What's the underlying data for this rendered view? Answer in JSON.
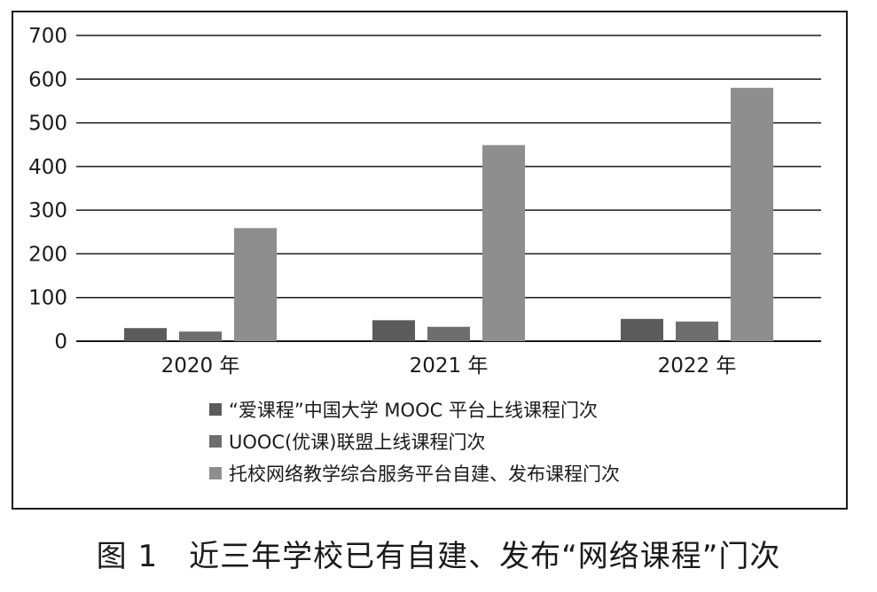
{
  "caption": "图 1　近三年学校已有自建、发布“网络课程”门次",
  "chart_data": {
    "type": "bar",
    "categories": [
      "2020 年",
      "2021 年",
      "2022 年"
    ],
    "series": [
      {
        "name": "“爱课程”中国大学 MOOC 平台上线课程门次",
        "values": [
          30,
          48,
          51
        ],
        "color": "#5b5b5b"
      },
      {
        "name": "UOOC(优课)联盟上线课程门次",
        "values": [
          22,
          33,
          45
        ],
        "color": "#6e6e6e"
      },
      {
        "name": "托校网络教学综合服务平台自建、发布课程门次",
        "values": [
          259,
          449,
          580
        ],
        "color": "#8e8e8e"
      }
    ],
    "yticks": [
      "0",
      "100",
      "200",
      "300",
      "400",
      "500",
      "600",
      "700"
    ],
    "ylim": [
      0,
      700
    ],
    "grid": true,
    "legend_position": "bottom"
  }
}
